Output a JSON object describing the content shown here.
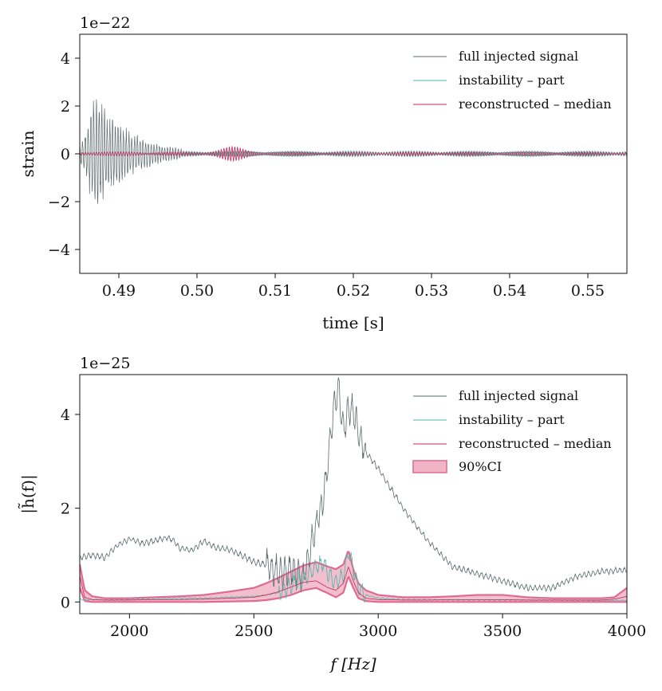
{
  "chart_data": [
    {
      "type": "line",
      "title": "",
      "xlabel": "time [s]",
      "ylabel": "strain",
      "offset_label": "1e−22",
      "xlim": [
        0.485,
        0.555
      ],
      "ylim": [
        -5,
        5
      ],
      "xticks": [
        0.49,
        0.5,
        0.51,
        0.52,
        0.53,
        0.54,
        0.55
      ],
      "xtick_labels": [
        "0.49",
        "0.50",
        "0.51",
        "0.52",
        "0.53",
        "0.54",
        "0.55"
      ],
      "yticks": [
        -4,
        -2,
        0,
        2,
        4
      ],
      "ytick_labels": [
        "−4",
        "−2",
        "0",
        "2",
        "4"
      ],
      "legend": [
        "full injected signal",
        "instability – part",
        "reconstructed – median"
      ],
      "legend_position": "top-right",
      "series": [
        {
          "name": "full injected signal",
          "color": "#5b6b6b",
          "kind": "damped-oscillation",
          "segments": [
            {
              "t0": 0.485,
              "t1": 0.498,
              "peak_t": 0.4872,
              "peak_amplitude": 2.55,
              "min_amplitude": -2.4,
              "frequency_hz": 2850,
              "decay_s": 0.0045
            },
            {
              "t0": 0.498,
              "t1": 0.555,
              "amplitude": 0.1,
              "frequency_hz": 2850
            }
          ]
        },
        {
          "name": "instability – part",
          "color": "#4fb8a8",
          "kind": "low-amplitude-oscillation",
          "segments": [
            {
              "t0": 0.498,
              "t1": 0.555,
              "amplitude": 0.12,
              "frequency_hz": 2850
            }
          ]
        },
        {
          "name": "reconstructed – median",
          "color": "#c8285a",
          "kind": "low-amplitude-oscillation",
          "segments": [
            {
              "t0": 0.485,
              "t1": 0.555,
              "amplitude": 0.08,
              "frequency_hz": 2880,
              "burst_t": 0.5045,
              "burst_amplitude": 0.22
            }
          ]
        }
      ]
    },
    {
      "type": "line",
      "title": "",
      "xlabel": "f [Hz]",
      "ylabel": "|h̃(f)|",
      "offset_label": "1e−25",
      "xlim": [
        1800,
        4000
      ],
      "ylim": [
        -0.25,
        4.85
      ],
      "xticks": [
        2000,
        2500,
        3000,
        3500,
        4000
      ],
      "xtick_labels": [
        "2000",
        "2500",
        "3000",
        "3500",
        "4000"
      ],
      "yticks": [
        0,
        2,
        4
      ],
      "ytick_labels": [
        "0",
        "2",
        "4"
      ],
      "legend": [
        "full injected signal",
        "instability – part",
        "reconstructed – median",
        "90%CI"
      ],
      "legend_position": "top-right",
      "series": [
        {
          "name": "full injected signal",
          "color": "#5b6b6b",
          "x": [
            1800,
            1850,
            1900,
            1950,
            2000,
            2050,
            2100,
            2150,
            2180,
            2200,
            2250,
            2300,
            2350,
            2400,
            2450,
            2500,
            2550,
            2600,
            2650,
            2700,
            2750,
            2780,
            2800,
            2820,
            2840,
            2860,
            2880,
            2900,
            2920,
            2950,
            3000,
            3100,
            3200,
            3300,
            3400,
            3500,
            3600,
            3700,
            3800,
            3900,
            4000
          ],
          "values": [
            0.95,
            1.0,
            0.95,
            1.2,
            1.35,
            1.25,
            1.3,
            1.38,
            1.3,
            1.15,
            1.1,
            1.3,
            1.15,
            1.12,
            1.0,
            0.85,
            0.8,
            0.6,
            0.7,
            0.5,
            1.65,
            2.2,
            3.1,
            4.1,
            4.65,
            3.6,
            4.1,
            4.08,
            3.6,
            3.2,
            2.85,
            2.0,
            1.3,
            0.75,
            0.6,
            0.45,
            0.3,
            0.3,
            0.55,
            0.65,
            0.68
          ]
        },
        {
          "name": "instability – part",
          "color": "#4fb8a8",
          "x": [
            1800,
            1850,
            1900,
            2000,
            2100,
            2200,
            2300,
            2400,
            2500,
            2550,
            2600,
            2650,
            2700,
            2750,
            2780,
            2800,
            2830,
            2860,
            2880,
            2900,
            2920,
            2950,
            3000,
            3100,
            3300,
            3500,
            3700,
            3900,
            4000
          ],
          "values": [
            0.05,
            0.05,
            0.04,
            0.05,
            0.06,
            0.08,
            0.08,
            0.1,
            0.12,
            0.15,
            0.2,
            0.35,
            0.5,
            0.75,
            0.85,
            0.6,
            0.4,
            0.55,
            1.05,
            0.7,
            0.3,
            0.15,
            0.08,
            0.05,
            0.04,
            0.04,
            0.04,
            0.03,
            0.03
          ]
        },
        {
          "name": "reconstructed – median",
          "color": "#c8285a",
          "x": [
            1800,
            1820,
            1850,
            1900,
            2000,
            2100,
            2200,
            2300,
            2400,
            2500,
            2550,
            2600,
            2650,
            2700,
            2750,
            2800,
            2830,
            2860,
            2880,
            2900,
            2920,
            2950,
            3000,
            3100,
            3200,
            3300,
            3400,
            3500,
            3600,
            3700,
            3800,
            3900,
            3950,
            4000
          ],
          "values": [
            0.55,
            0.1,
            0.05,
            0.04,
            0.04,
            0.05,
            0.05,
            0.06,
            0.08,
            0.1,
            0.15,
            0.22,
            0.32,
            0.42,
            0.45,
            0.3,
            0.25,
            0.4,
            0.75,
            0.45,
            0.2,
            0.08,
            0.05,
            0.04,
            0.04,
            0.05,
            0.05,
            0.05,
            0.04,
            0.04,
            0.04,
            0.04,
            0.06,
            0.12
          ]
        }
      ],
      "band": {
        "name": "90%CI",
        "color": "#e06a90",
        "fill_color": "#f0b4c6",
        "x": [
          1800,
          1820,
          1850,
          1900,
          2000,
          2100,
          2200,
          2300,
          2400,
          2500,
          2550,
          2600,
          2650,
          2700,
          2750,
          2800,
          2830,
          2860,
          2880,
          2900,
          2920,
          2950,
          3000,
          3100,
          3200,
          3300,
          3400,
          3500,
          3600,
          3700,
          3800,
          3900,
          3950,
          4000
        ],
        "lower": [
          0.3,
          0.02,
          0.0,
          0.0,
          0.0,
          0.0,
          0.0,
          0.0,
          0.01,
          0.02,
          0.04,
          0.08,
          0.15,
          0.25,
          0.3,
          0.18,
          0.1,
          0.2,
          0.55,
          0.3,
          0.08,
          0.02,
          0.0,
          0.0,
          0.0,
          0.0,
          0.0,
          0.0,
          0.0,
          0.0,
          0.0,
          0.0,
          0.0,
          0.0
        ],
        "upper": [
          0.8,
          0.25,
          0.12,
          0.08,
          0.08,
          0.1,
          0.12,
          0.15,
          0.22,
          0.3,
          0.4,
          0.52,
          0.65,
          0.78,
          0.85,
          0.75,
          0.7,
          0.8,
          1.1,
          0.7,
          0.4,
          0.25,
          0.15,
          0.1,
          0.1,
          0.12,
          0.15,
          0.15,
          0.1,
          0.08,
          0.08,
          0.08,
          0.1,
          0.3
        ]
      }
    }
  ]
}
